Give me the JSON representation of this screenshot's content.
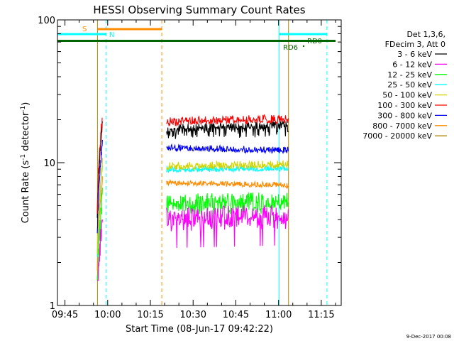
{
  "chart_data": {
    "type": "line",
    "title": "HESSI Observing Summary Count Rates",
    "xlabel": "Start Time (08-Jun-17 09:42:22)",
    "ylabel": "Count Rate (s⁻¹ detector⁻¹)",
    "ylabel_main": "Count Rate (s",
    "ylabel_sup1": "-1",
    "ylabel_mid": " detector",
    "ylabel_sup2": "-1",
    "ylabel_end": ")",
    "yscale": "log",
    "ylim": [
      1,
      100
    ],
    "xlim": [
      "09:42:22",
      "11:22:00"
    ],
    "x_ticks": [
      "09:45",
      "10:00",
      "10:15",
      "10:30",
      "10:45",
      "11:00",
      "11:15"
    ],
    "y_ticks": [
      "1",
      "10",
      "100"
    ],
    "legend_header": [
      "Det 1,3,6,",
      "FDecim 3, Att 0"
    ],
    "legend_position": "right",
    "series": [
      {
        "name": "3 - 6 keV",
        "color": "#000000",
        "levels": [
          17.5,
          18.5
        ]
      },
      {
        "name": "6 - 12 keV",
        "color": "#ff00ff",
        "levels": [
          4.2,
          4.4
        ]
      },
      {
        "name": "12 - 25 keV",
        "color": "#00ff00",
        "levels": [
          5.3,
          5.5
        ]
      },
      {
        "name": "25 - 50 keV",
        "color": "#00ffff",
        "levels": [
          9.0,
          9.2
        ]
      },
      {
        "name": "50 - 100 keV",
        "color": "#d4d400",
        "levels": [
          9.5,
          9.8
        ]
      },
      {
        "name": "100 - 300 keV",
        "color": "#ff0000",
        "levels": [
          19.5,
          20.5
        ]
      },
      {
        "name": "300 - 800 keV",
        "color": "#0000ff",
        "levels": [
          12.8,
          12.3
        ]
      },
      {
        "name": "800 - 7000 keV",
        "color": "#ff8c00",
        "levels": [
          7.3,
          7.0
        ]
      },
      {
        "name": "7000 - 20000 keV",
        "color": "#b08a00",
        "levels": [
          null,
          null
        ]
      }
    ],
    "flags": [
      {
        "label": "S",
        "color": "#ff8c00"
      },
      {
        "label": "N",
        "color": "#00ffff"
      },
      {
        "label": "RD6",
        "color": "#006400"
      },
      {
        "label": "RD0",
        "color": "#006400"
      }
    ],
    "timestamp": "9-Dec-2017 00:08"
  }
}
